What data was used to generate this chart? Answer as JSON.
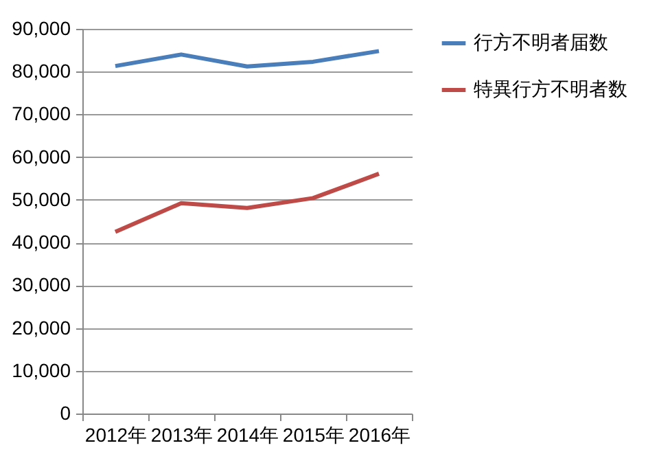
{
  "chart_data": {
    "type": "line",
    "categories": [
      "2012年",
      "2013年",
      "2014年",
      "2015年",
      "2016年"
    ],
    "series": [
      {
        "name": "行方不明者届数",
        "color": "#4a7ebb",
        "values": [
          81300,
          84000,
          81200,
          82300,
          84800
        ]
      },
      {
        "name": "特異行方不明者数",
        "color": "#be4b48",
        "values": [
          42500,
          49200,
          48100,
          50400,
          56100
        ]
      }
    ],
    "ylim": [
      0,
      90000
    ],
    "yticks": [
      {
        "value": 0,
        "label": "0"
      },
      {
        "value": 10000,
        "label": "10,000"
      },
      {
        "value": 20000,
        "label": "20,000"
      },
      {
        "value": 30000,
        "label": "30,000"
      },
      {
        "value": 40000,
        "label": "40,000"
      },
      {
        "value": 50000,
        "label": "50,000"
      },
      {
        "value": 60000,
        "label": "60,000"
      },
      {
        "value": 70000,
        "label": "70,000"
      },
      {
        "value": 80000,
        "label": "80,000"
      },
      {
        "value": 90000,
        "label": "90,000"
      }
    ],
    "grid": "y",
    "legend": "right",
    "marker": "none",
    "line_style": "solid"
  }
}
